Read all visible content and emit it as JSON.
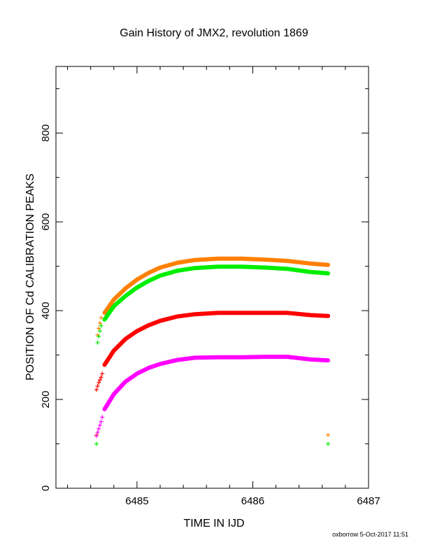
{
  "chart_data": {
    "type": "scatter",
    "title": "Gain History of JMX2, revolution 1869",
    "xlabel": "TIME IN IJD",
    "ylabel": "POSITION OF Cd CALIBRATION PEAKS",
    "xlim": [
      6484.3,
      6487
    ],
    "ylim": [
      0,
      950
    ],
    "x_ticks": [
      6485,
      6486,
      6487
    ],
    "x_tick_labels": [
      "6485",
      "6486",
      "6487"
    ],
    "y_ticks": [
      0,
      200,
      400,
      600,
      800
    ],
    "y_tick_labels": [
      "0",
      "200",
      "400",
      "600",
      "800"
    ],
    "grid": false,
    "footer": "oxborrow  5-Oct-2017 11:51",
    "colors": {
      "fit_upper": "#ff8000",
      "fit_upper2": "#00ee00",
      "fit_mid": "#ff0000",
      "fit_low": "#ff00ff",
      "pts_upper": "#8000ff",
      "pts_upper2": "#0000ff",
      "pts_mid": "#000000",
      "pts_low": "#ffff00"
    },
    "series": [
      {
        "color_key": "fit_upper",
        "style": "line",
        "x": [
          6484.72,
          6484.8,
          6484.9,
          6485.0,
          6485.1,
          6485.2,
          6485.35,
          6485.5,
          6485.7,
          6485.9,
          6486.1,
          6486.3,
          6486.5,
          6486.65
        ],
        "y": [
          395,
          425,
          450,
          470,
          485,
          497,
          508,
          514,
          517,
          517,
          515,
          512,
          506,
          503
        ]
      },
      {
        "color_key": "fit_upper2",
        "style": "line",
        "x": [
          6484.72,
          6484.8,
          6484.9,
          6485.0,
          6485.1,
          6485.2,
          6485.35,
          6485.5,
          6485.7,
          6485.9,
          6486.1,
          6486.3,
          6486.5,
          6486.65
        ],
        "y": [
          380,
          410,
          433,
          452,
          467,
          479,
          490,
          496,
          499,
          499,
          497,
          494,
          487,
          484
        ]
      },
      {
        "color_key": "fit_mid",
        "style": "line",
        "x": [
          6484.72,
          6484.8,
          6484.9,
          6485.0,
          6485.1,
          6485.2,
          6485.35,
          6485.5,
          6485.7,
          6485.9,
          6486.1,
          6486.3,
          6486.5,
          6486.65
        ],
        "y": [
          278,
          310,
          336,
          354,
          367,
          377,
          387,
          392,
          395,
          395,
          395,
          395,
          390,
          388
        ]
      },
      {
        "color_key": "fit_low",
        "style": "line",
        "x": [
          6484.72,
          6484.8,
          6484.9,
          6485.0,
          6485.1,
          6485.2,
          6485.35,
          6485.5,
          6485.7,
          6485.9,
          6486.1,
          6486.3,
          6486.5,
          6486.65
        ],
        "y": [
          178,
          212,
          240,
          258,
          271,
          280,
          289,
          294,
          295,
          295,
          296,
          296,
          290,
          288
        ]
      },
      {
        "color_key": "fit_upper",
        "style": "points",
        "x": [
          6484.65,
          6484.66,
          6484.67,
          6484.68,
          6484.69,
          6486.65
        ],
        "y": [
          120,
          345,
          360,
          372,
          384,
          120
        ]
      },
      {
        "color_key": "fit_upper2",
        "style": "points",
        "x": [
          6484.65,
          6484.66,
          6484.67,
          6484.68,
          6484.69,
          6486.65
        ],
        "y": [
          100,
          328,
          342,
          354,
          366,
          100
        ]
      },
      {
        "color_key": "fit_mid",
        "style": "points",
        "x": [
          6484.65,
          6484.66,
          6484.67,
          6484.68,
          6484.69,
          6484.7
        ],
        "y": [
          222,
          230,
          238,
          244,
          250,
          258
        ]
      },
      {
        "color_key": "fit_low",
        "style": "points",
        "x": [
          6484.65,
          6484.66,
          6484.67,
          6484.68,
          6484.69,
          6484.7
        ],
        "y": [
          118,
          126,
          134,
          142,
          150,
          160
        ]
      }
    ]
  }
}
